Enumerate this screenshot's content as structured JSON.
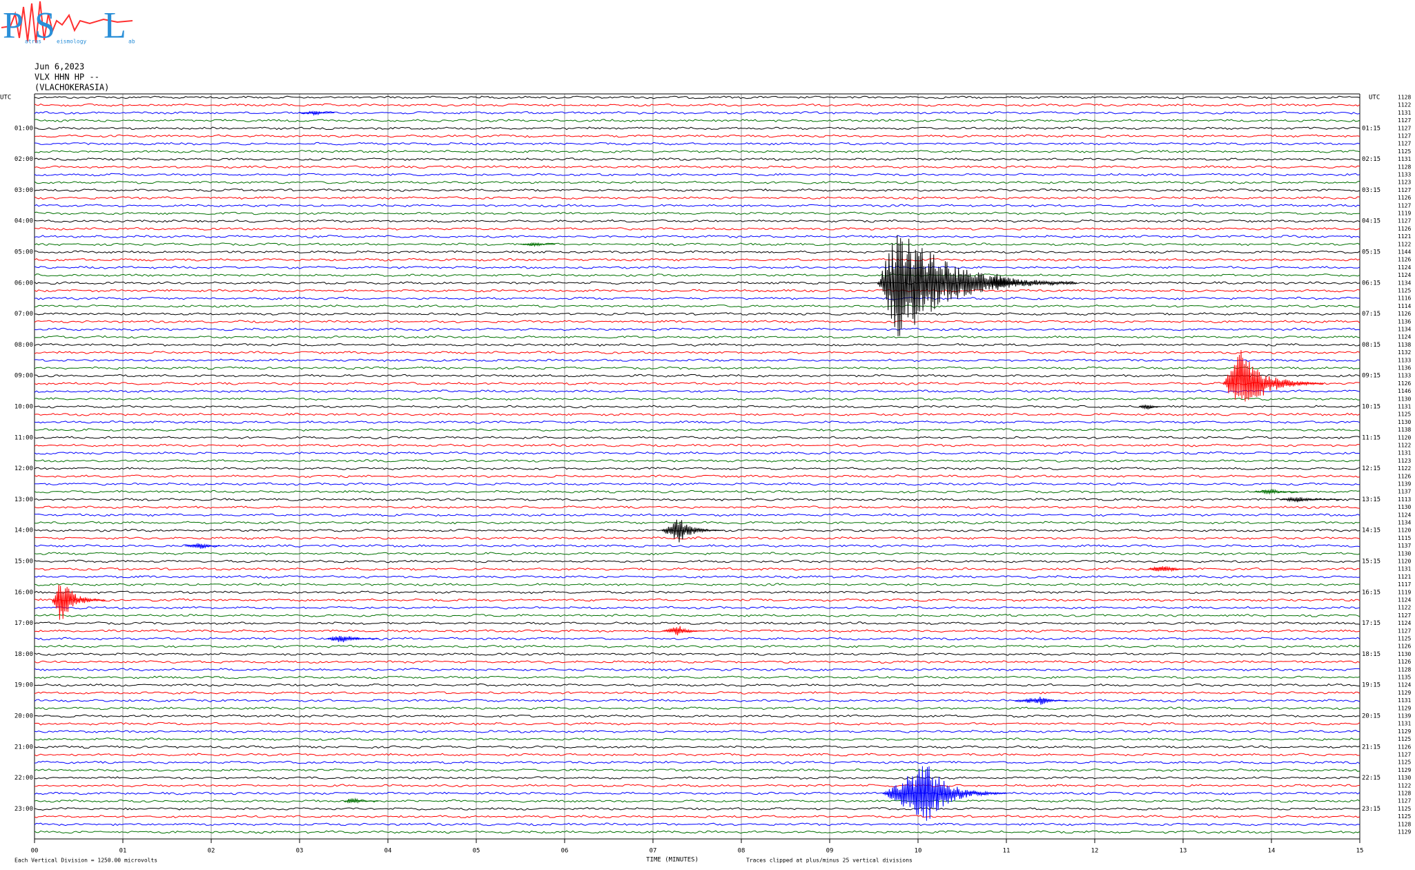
{
  "logo": {
    "letters": [
      "P",
      "S",
      "L"
    ],
    "words": [
      "atras",
      "eismology",
      "ab"
    ]
  },
  "chart_data": {
    "type": "helicorder",
    "title": [
      "Jun 6,2023",
      "VLX HHN HP --",
      "(VLACHOKERASIA)"
    ],
    "utc_label": "UTC",
    "row_labels_left": [
      "01:00",
      "02:00",
      "03:00",
      "04:00",
      "05:00",
      "06:00",
      "07:00",
      "08:00",
      "09:00",
      "10:00",
      "11:00",
      "12:00",
      "13:00",
      "14:00",
      "15:00",
      "16:00",
      "17:00",
      "18:00",
      "19:00",
      "20:00",
      "21:00",
      "22:00",
      "23:00"
    ],
    "row_labels_right": [
      "01:15",
      "02:15",
      "03:15",
      "04:15",
      "05:15",
      "06:15",
      "07:15",
      "08:15",
      "09:15",
      "10:15",
      "11:15",
      "12:15",
      "13:15",
      "14:15",
      "15:15",
      "16:15",
      "17:15",
      "18:15",
      "19:15",
      "20:15",
      "21:15",
      "22:15",
      "23:15"
    ],
    "trace_colors": [
      "#000000",
      "#ff0000",
      "#0000ff",
      "#007000"
    ],
    "trace_numbers": [
      1128,
      1122,
      1131,
      1127,
      1127,
      1127,
      1127,
      1125,
      1131,
      1128,
      1133,
      1123,
      1127,
      1126,
      1127,
      1119,
      1127,
      1126,
      1121,
      1122,
      1144,
      1126,
      1124,
      1124,
      1134,
      1125,
      1116,
      1114,
      1126,
      1136,
      1134,
      1124,
      1138,
      1132,
      1133,
      1136,
      1133,
      1126,
      1146,
      1130,
      1131,
      1125,
      1130,
      1138,
      1120,
      1122,
      1131,
      1123,
      1122,
      1126,
      1139,
      1137,
      1113,
      1130,
      1124,
      1134,
      1120,
      1115,
      1137,
      1130,
      1120,
      1131,
      1121,
      1117,
      1119,
      1124,
      1122,
      1127,
      1124,
      1127,
      1125,
      1126,
      1130,
      1126,
      1128,
      1135,
      1124,
      1129,
      1131,
      1129,
      1139,
      1131,
      1129,
      1125,
      1126,
      1127,
      1125,
      1129,
      1130,
      1122,
      1128,
      1127,
      1125,
      1125,
      1128,
      1129
    ],
    "events": [
      {
        "trace": 2,
        "start": 3.0,
        "peak": 3.2,
        "end": 3.4,
        "amplitude": 0.3
      },
      {
        "trace": 19,
        "start": 5.5,
        "peak": 5.7,
        "end": 5.9,
        "amplitude": 0.3
      },
      {
        "trace": 24,
        "start": 9.54,
        "peak": 9.8,
        "end": 11.8,
        "amplitude": 8
      },
      {
        "trace": 24,
        "start": 10.8,
        "peak": 10.9,
        "end": 11.2,
        "amplitude": 1.5
      },
      {
        "trace": 37,
        "start": 13.45,
        "peak": 13.65,
        "end": 14.6,
        "amplitude": 4.6
      },
      {
        "trace": 40,
        "start": 12.5,
        "peak": 12.6,
        "end": 12.75,
        "amplitude": 0.5
      },
      {
        "trace": 56,
        "start": 7.1,
        "peak": 7.3,
        "end": 7.8,
        "amplitude": 1.7
      },
      {
        "trace": 58,
        "start": 1.7,
        "peak": 1.9,
        "end": 2.1,
        "amplitude": 0.5
      },
      {
        "trace": 61,
        "start": 12.6,
        "peak": 12.8,
        "end": 13.1,
        "amplitude": 0.6
      },
      {
        "trace": 65,
        "start": 0.2,
        "peak": 0.3,
        "end": 0.8,
        "amplitude": 3.5
      },
      {
        "trace": 69,
        "start": 7.1,
        "peak": 7.3,
        "end": 7.6,
        "amplitude": 0.7
      },
      {
        "trace": 70,
        "start": 3.3,
        "peak": 3.5,
        "end": 3.9,
        "amplitude": 0.6
      },
      {
        "trace": 78,
        "start": 11.1,
        "peak": 11.4,
        "end": 11.7,
        "amplitude": 0.6
      },
      {
        "trace": 90,
        "start": 9.6,
        "peak": 10.1,
        "end": 11.0,
        "amplitude": 4
      },
      {
        "trace": 91,
        "start": 3.5,
        "peak": 3.6,
        "end": 3.9,
        "amplitude": 0.5
      },
      {
        "trace": 51,
        "start": 13.8,
        "peak": 14.0,
        "end": 14.3,
        "amplitude": 0.4
      },
      {
        "trace": 52,
        "start": 14.1,
        "peak": 14.3,
        "end": 14.8,
        "amplitude": 0.4
      }
    ],
    "xlim": [
      0,
      15
    ],
    "xticks": [
      {
        "value": 0,
        "label": "00"
      },
      {
        "value": 1,
        "label": "01"
      },
      {
        "value": 2,
        "label": "02"
      },
      {
        "value": 3,
        "label": "03"
      },
      {
        "value": 4,
        "label": "04"
      },
      {
        "value": 5,
        "label": "05"
      },
      {
        "value": 6,
        "label": "06"
      },
      {
        "value": 7,
        "label": "07"
      },
      {
        "value": 8,
        "label": "08"
      },
      {
        "value": 9,
        "label": "09"
      },
      10,
      11,
      12,
      13,
      14,
      15
    ],
    "xlabel": "TIME (MINUTES)",
    "footnote_left": "Each Vertical Division = 1250.00 microvolts",
    "footnote_right": "Traces clipped at plus/minus 25 vertical divisions"
  }
}
